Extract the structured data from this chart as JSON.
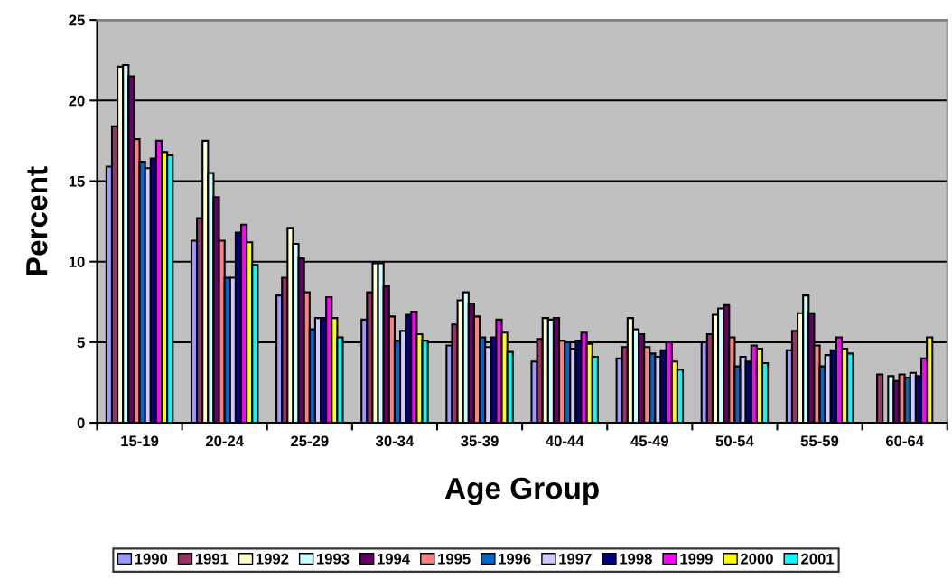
{
  "chart_data": {
    "type": "bar",
    "xlabel": "Age Group",
    "ylabel": "Percent",
    "categories": [
      "15-19",
      "20-24",
      "25-29",
      "30-34",
      "35-39",
      "40-44",
      "45-49",
      "50-54",
      "55-59",
      "60-64"
    ],
    "series": [
      {
        "name": "1990",
        "color": "#9999ff",
        "values": [
          15.9,
          11.3,
          7.9,
          6.4,
          4.8,
          3.8,
          4.0,
          5.0,
          4.5,
          null
        ]
      },
      {
        "name": "1991",
        "color": "#993366",
        "values": [
          18.4,
          12.7,
          9.0,
          8.1,
          6.1,
          5.2,
          4.7,
          5.5,
          5.7,
          3.0
        ]
      },
      {
        "name": "1992",
        "color": "#ffffcc",
        "values": [
          22.1,
          17.5,
          12.1,
          9.9,
          7.6,
          6.5,
          6.5,
          6.7,
          6.8,
          null
        ]
      },
      {
        "name": "1993",
        "color": "#ccffff",
        "values": [
          22.2,
          15.5,
          11.1,
          9.9,
          8.1,
          6.4,
          5.8,
          7.1,
          7.9,
          2.9
        ]
      },
      {
        "name": "1994",
        "color": "#660066",
        "values": [
          21.5,
          14.0,
          10.2,
          8.5,
          7.4,
          6.5,
          5.5,
          7.3,
          6.8,
          2.6
        ]
      },
      {
        "name": "1995",
        "color": "#ff8080",
        "values": [
          17.6,
          11.3,
          8.1,
          6.6,
          6.6,
          5.1,
          4.7,
          5.3,
          4.8,
          3.0
        ]
      },
      {
        "name": "1996",
        "color": "#0066cc",
        "values": [
          16.2,
          9.0,
          5.8,
          5.1,
          5.3,
          5.0,
          4.3,
          3.5,
          3.5,
          2.8
        ]
      },
      {
        "name": "1997",
        "color": "#ccccff",
        "values": [
          15.8,
          9.0,
          6.5,
          5.7,
          4.7,
          4.6,
          4.1,
          4.1,
          4.2,
          3.1
        ]
      },
      {
        "name": "1998",
        "color": "#000080",
        "values": [
          16.4,
          11.8,
          6.5,
          6.7,
          5.3,
          5.1,
          4.5,
          3.8,
          4.5,
          2.9
        ]
      },
      {
        "name": "1999",
        "color": "#ff00ff",
        "values": [
          17.5,
          12.3,
          7.8,
          6.9,
          6.4,
          5.6,
          5.0,
          4.8,
          5.3,
          4.0
        ]
      },
      {
        "name": "2000",
        "color": "#ffff00",
        "values": [
          16.8,
          11.2,
          6.5,
          5.5,
          5.6,
          4.9,
          3.8,
          4.6,
          4.6,
          5.3
        ]
      },
      {
        "name": "2001",
        "color": "#00ffff",
        "values": [
          16.6,
          9.8,
          5.3,
          5.1,
          4.4,
          4.1,
          3.3,
          3.7,
          4.3,
          null
        ]
      }
    ],
    "ylim": [
      0,
      25
    ],
    "yticks": [
      0,
      5,
      10,
      15,
      20,
      25
    ],
    "grid": "y",
    "legend": "bottom"
  }
}
